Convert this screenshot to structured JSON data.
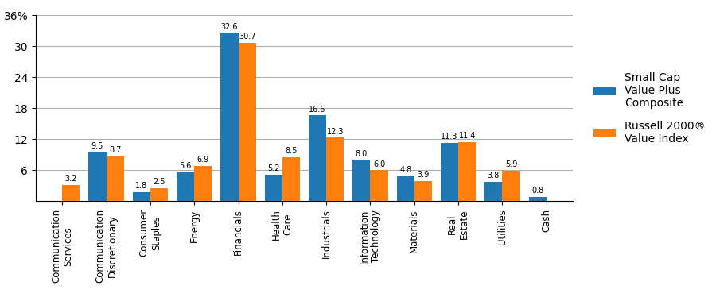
{
  "chart_data": {
    "type": "bar",
    "categories": [
      "Communication\nServices",
      "Communication\nDiscretionary",
      "Consumer\nStaples",
      "Energy",
      "Financials",
      "Health\nCare",
      "Industrials",
      "Information\nTechnology",
      "Materials",
      "Real\nEstate",
      "Utilities",
      "Cash"
    ],
    "series": [
      {
        "name": "Small Cap\nValue Plus\nComposite",
        "values": [
          0.0,
          9.5,
          1.8,
          5.6,
          32.6,
          5.2,
          16.6,
          8.0,
          4.8,
          11.3,
          3.8,
          0.8
        ],
        "value_labels": [
          null,
          "9.5",
          "1.8",
          "5.6",
          "32.6",
          "5.2",
          "16.6",
          "8.0",
          "4.8",
          "11.3",
          "3.8",
          "0.8"
        ]
      },
      {
        "name": "Russell 2000®\nValue Index",
        "values": [
          3.2,
          8.7,
          2.5,
          6.9,
          30.7,
          8.5,
          12.3,
          6.0,
          3.9,
          11.4,
          5.9,
          0.0
        ],
        "value_labels": [
          "3.2",
          "8.7",
          "2.5",
          "6.9",
          "30.7",
          "8.5",
          "12.3",
          "6.0",
          "3.9",
          "11.4",
          "5.9",
          null
        ]
      }
    ],
    "ylim": [
      0,
      36
    ],
    "yticks": [
      6,
      12,
      18,
      24,
      30,
      {
        "value": 36,
        "label": "36%"
      }
    ],
    "grid": true,
    "data_labels": true,
    "legend": "center left"
  }
}
